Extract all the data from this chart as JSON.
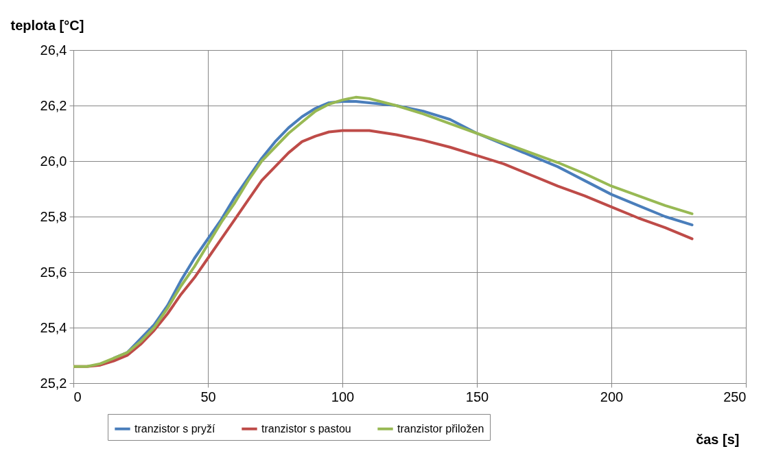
{
  "chart_data": {
    "type": "line",
    "xlabel": "čas [s]",
    "ylabel": "teplota [°C]",
    "x": [
      0,
      5,
      10,
      15,
      20,
      25,
      30,
      35,
      40,
      45,
      50,
      55,
      60,
      65,
      70,
      75,
      80,
      85,
      90,
      95,
      100,
      105,
      110,
      120,
      130,
      140,
      150,
      160,
      170,
      180,
      190,
      200,
      210,
      220,
      230
    ],
    "series": [
      {
        "name": "tranzistor s pryží",
        "color": "#4a7ebb",
        "values": [
          null,
          null,
          null,
          25.29,
          25.31,
          25.36,
          25.41,
          25.48,
          25.57,
          25.65,
          25.72,
          25.79,
          25.87,
          25.94,
          26.01,
          26.07,
          26.12,
          26.16,
          26.19,
          26.21,
          26.215,
          26.215,
          26.21,
          26.2,
          26.18,
          26.15,
          26.1,
          26.06,
          26.02,
          25.98,
          25.93,
          25.88,
          25.84,
          25.8,
          25.77
        ]
      },
      {
        "name": "tranzistor s pastou",
        "color": "#be4b48",
        "values": [
          25.26,
          25.26,
          25.265,
          25.28,
          25.3,
          25.34,
          25.39,
          25.45,
          25.52,
          25.58,
          25.65,
          25.72,
          25.79,
          25.86,
          25.93,
          25.98,
          26.03,
          26.07,
          26.09,
          26.105,
          26.11,
          26.11,
          26.11,
          26.095,
          26.075,
          26.05,
          26.02,
          25.99,
          25.95,
          25.91,
          25.875,
          25.835,
          25.795,
          25.76,
          25.72
        ]
      },
      {
        "name": "tranzistor přiložen",
        "color": "#98b954",
        "values": [
          25.26,
          25.26,
          25.27,
          25.29,
          25.31,
          25.35,
          25.4,
          25.47,
          25.55,
          25.62,
          25.7,
          25.78,
          25.85,
          25.93,
          26.0,
          26.05,
          26.1,
          26.14,
          26.18,
          26.205,
          26.22,
          26.23,
          26.225,
          26.2,
          26.17,
          26.135,
          26.1,
          26.065,
          26.03,
          25.995,
          25.955,
          25.91,
          25.875,
          25.84,
          25.81
        ]
      }
    ],
    "xlim": [
      0,
      250
    ],
    "xticks": [
      0,
      50,
      100,
      150,
      200,
      250
    ],
    "ylim": [
      25.2,
      26.4
    ],
    "yticks": [
      {
        "value": 25.2,
        "label": "25,2"
      },
      {
        "value": 25.4,
        "label": "25,4"
      },
      {
        "value": 25.6,
        "label": "25,6"
      },
      {
        "value": 25.8,
        "label": "25,8"
      },
      {
        "value": 26.0,
        "label": "26,0"
      },
      {
        "value": 26.2,
        "label": "26,2"
      },
      {
        "value": 26.4,
        "label": "26,4"
      }
    ],
    "grid": true,
    "legend": "bottom",
    "marker": "none",
    "line_style": "solid"
  }
}
